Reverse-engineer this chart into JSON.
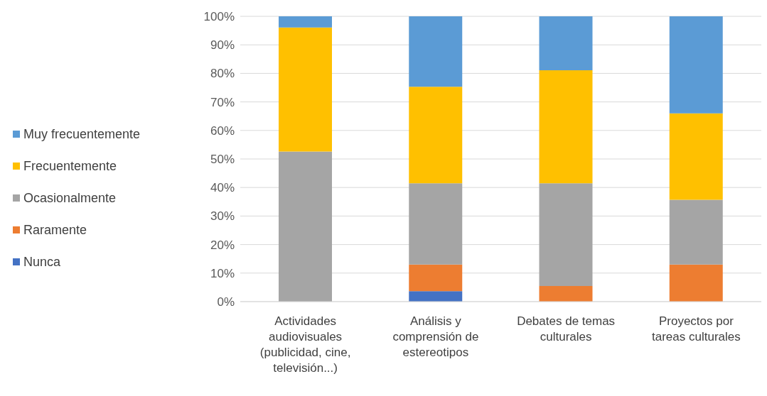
{
  "chart_data": {
    "type": "bar",
    "stacked": true,
    "categories": [
      "Actividades audiovisuales (publicidad, cine, televisión...)",
      "Análisis y comprensión de estereotipos",
      "Debates de temas culturales",
      "Proyectos por tareas culturales"
    ],
    "series": [
      {
        "name": "Nunca",
        "color": "#4472c4",
        "values": [
          0,
          3.7,
          0,
          0
        ]
      },
      {
        "name": "Raramente",
        "color": "#ed7d31",
        "values": [
          0,
          9.3,
          5.5,
          13
        ]
      },
      {
        "name": "Ocasionalmente",
        "color": "#a5a5a5",
        "values": [
          52.6,
          28.5,
          36,
          22.7
        ]
      },
      {
        "name": "Frecuentemente",
        "color": "#ffc000",
        "values": [
          43.5,
          33.8,
          39.6,
          30.3
        ]
      },
      {
        "name": "Muy frecuentemente",
        "color": "#5b9bd5",
        "values": [
          3.9,
          24.7,
          18.9,
          34
        ]
      }
    ],
    "ylim": [
      0,
      100
    ],
    "yticks": [
      {
        "value": 0,
        "label": "0%"
      },
      {
        "value": 10,
        "label": "10%"
      },
      {
        "value": 20,
        "label": "20%"
      },
      {
        "value": 30,
        "label": "30%"
      },
      {
        "value": 40,
        "label": "40%"
      },
      {
        "value": 50,
        "label": "50%"
      },
      {
        "value": 60,
        "label": "60%"
      },
      {
        "value": 70,
        "label": "70%"
      },
      {
        "value": 80,
        "label": "80%"
      },
      {
        "value": 90,
        "label": "90%"
      },
      {
        "value": 100,
        "label": "100%"
      }
    ],
    "grid": "y",
    "legend": "left"
  }
}
